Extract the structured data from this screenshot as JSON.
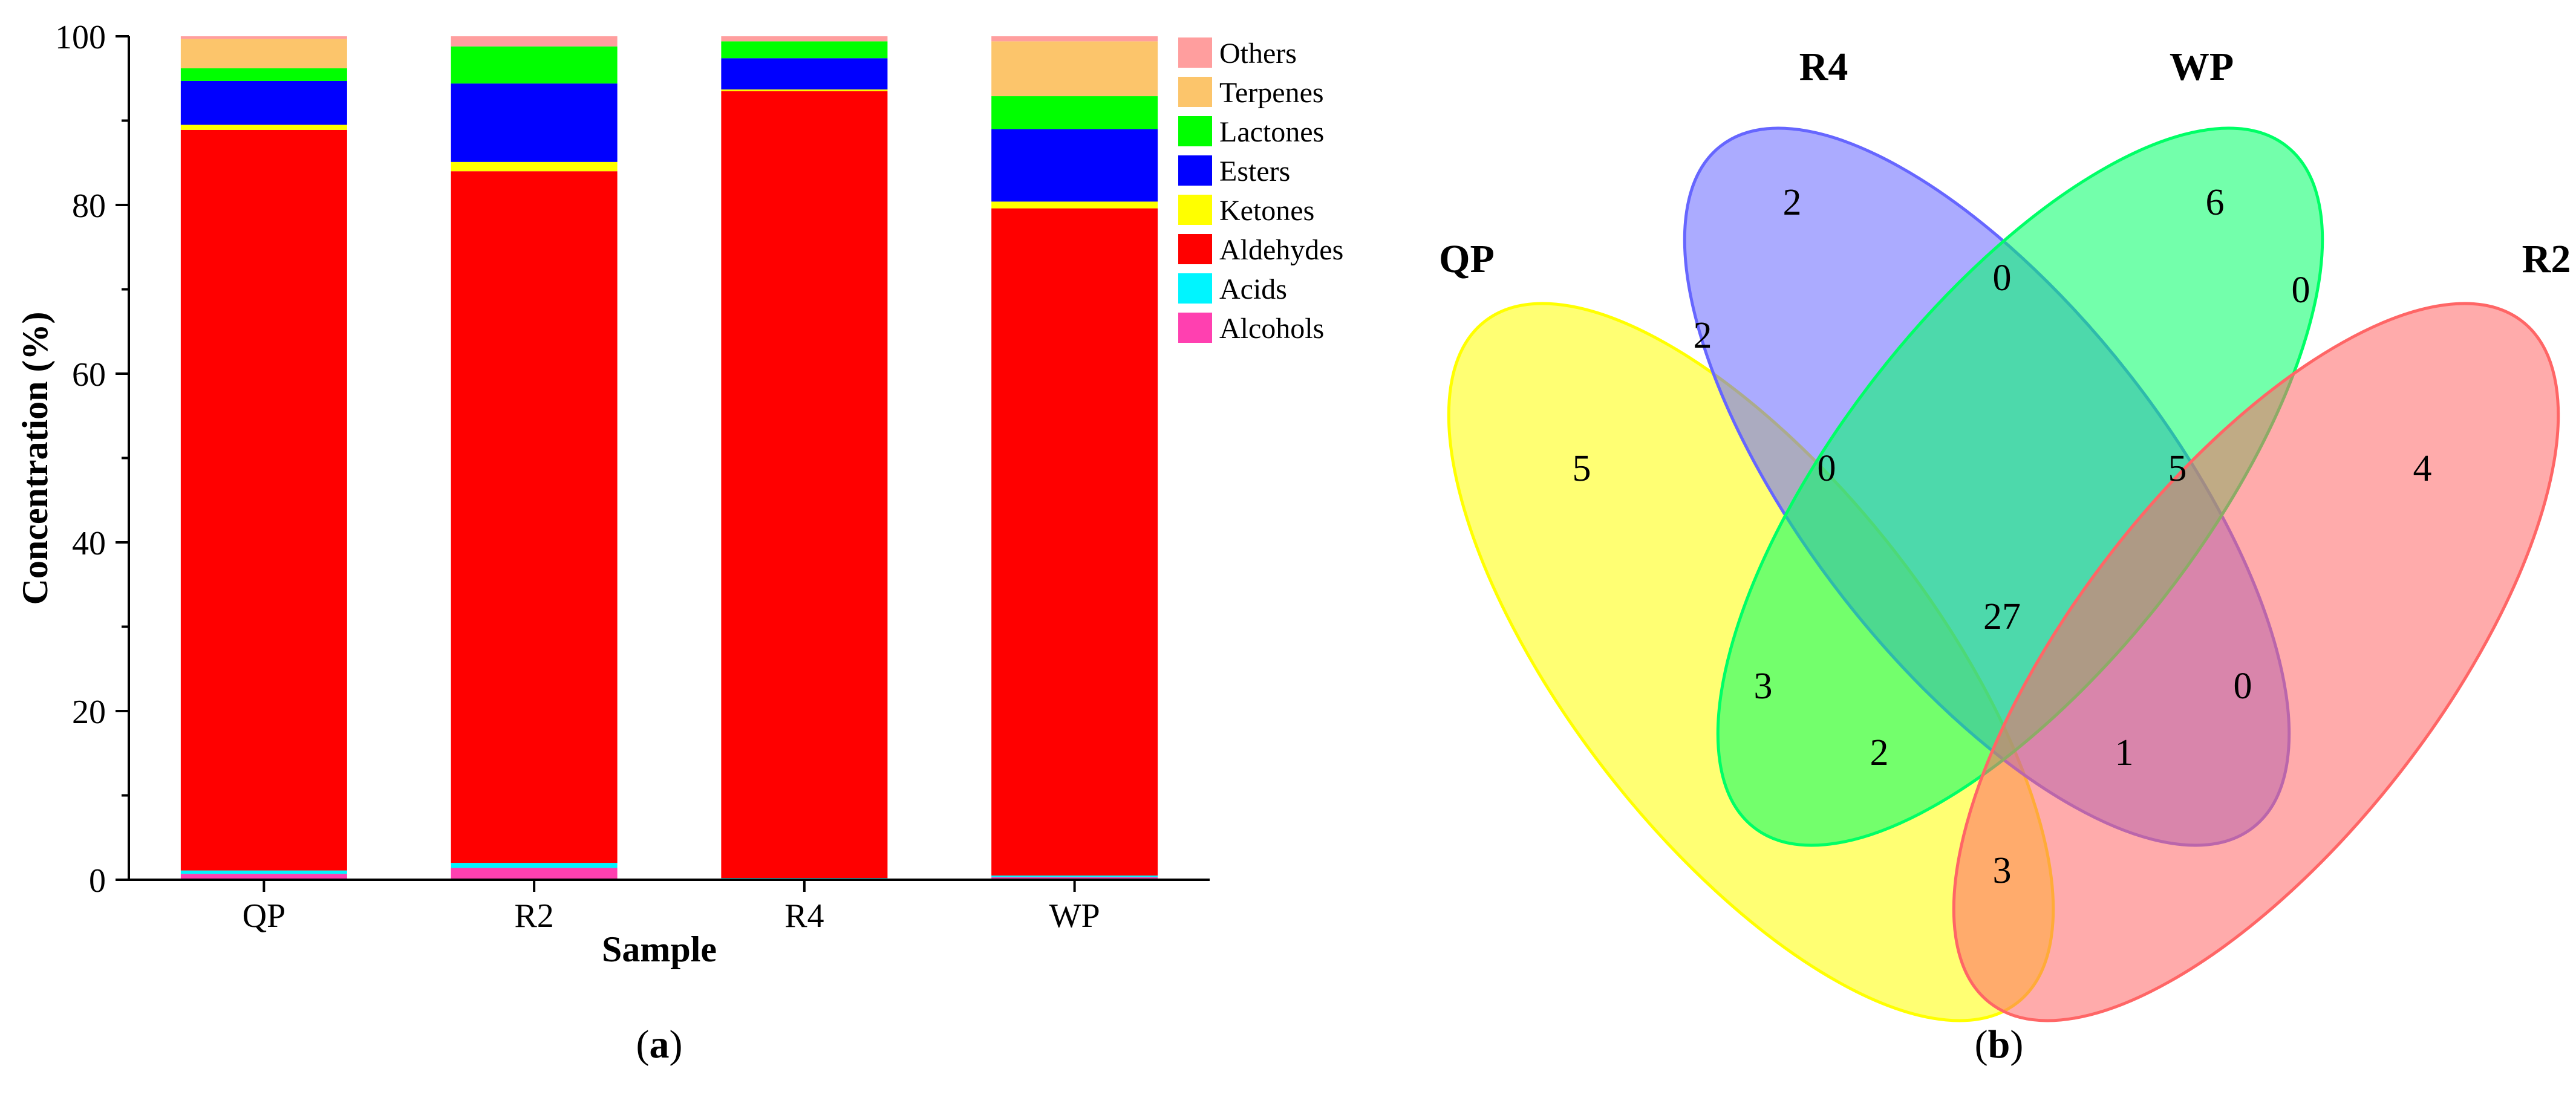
{
  "chart_data": [
    {
      "type": "bar",
      "stacked": true,
      "panel_label": "a",
      "xlabel": "Sample",
      "ylabel": "Concentration (%)",
      "ylim": [
        0,
        100
      ],
      "yticks": [
        "0",
        "20",
        "40",
        "60",
        "80",
        "100"
      ],
      "categories": [
        "QP",
        "R2",
        "R4",
        "WP"
      ],
      "legend_position": "top-right, outside plot",
      "series": [
        {
          "name": "Alcohols",
          "color": "#ff40b0",
          "values": [
            0.7,
            1.4,
            0.1,
            0.3
          ]
        },
        {
          "name": "Acids",
          "color": "#00f5ff",
          "values": [
            0.4,
            0.6,
            0.1,
            0.2
          ]
        },
        {
          "name": "Aldehydes",
          "color": "#ff0000",
          "values": [
            87.8,
            82.0,
            93.3,
            79.1
          ]
        },
        {
          "name": "Ketones",
          "color": "#ffff00",
          "values": [
            0.6,
            1.1,
            0.2,
            0.8
          ]
        },
        {
          "name": "Esters",
          "color": "#0000ff",
          "values": [
            5.2,
            9.3,
            3.7,
            8.6
          ]
        },
        {
          "name": "Lactones",
          "color": "#00ff00",
          "values": [
            1.5,
            4.4,
            2.0,
            3.9
          ]
        },
        {
          "name": "Terpenes",
          "color": "#fcc56b",
          "values": [
            3.5,
            0.0,
            0.0,
            6.5
          ]
        },
        {
          "name": "Others",
          "color": "#ff9e9e",
          "values": [
            0.3,
            1.2,
            0.6,
            0.6
          ]
        }
      ]
    },
    {
      "type": "venn",
      "panel_label": "b",
      "sets": [
        {
          "name": "QP",
          "color": "#ffff00"
        },
        {
          "name": "R4",
          "color": "#6666ff"
        },
        {
          "name": "WP",
          "color": "#00ff66"
        },
        {
          "name": "R2",
          "color": "#ff6666"
        }
      ],
      "regions": [
        {
          "sets": [
            "R4"
          ],
          "value": "2"
        },
        {
          "sets": [
            "WP"
          ],
          "value": "6"
        },
        {
          "sets": [
            "QP"
          ],
          "value": "5"
        },
        {
          "sets": [
            "R2"
          ],
          "value": "4"
        },
        {
          "sets": [
            "R4",
            "WP"
          ],
          "value": "0"
        },
        {
          "sets": [
            "QP",
            "R4"
          ],
          "value": "2"
        },
        {
          "sets": [
            "WP",
            "R2"
          ],
          "value": "0"
        },
        {
          "sets": [
            "QP",
            "R4",
            "WP"
          ],
          "value": "0"
        },
        {
          "sets": [
            "R4",
            "WP",
            "R2"
          ],
          "value": "5"
        },
        {
          "sets": [
            "QP",
            "R4",
            "WP",
            "R2"
          ],
          "value": "27"
        },
        {
          "sets": [
            "QP",
            "WP"
          ],
          "value": "3"
        },
        {
          "sets": [
            "R4",
            "R2"
          ],
          "value": "0"
        },
        {
          "sets": [
            "QP",
            "WP",
            "R2"
          ],
          "value": "2"
        },
        {
          "sets": [
            "QP",
            "R4",
            "R2"
          ],
          "value": "1"
        },
        {
          "sets": [
            "QP",
            "R2"
          ],
          "value": "3"
        }
      ]
    }
  ]
}
